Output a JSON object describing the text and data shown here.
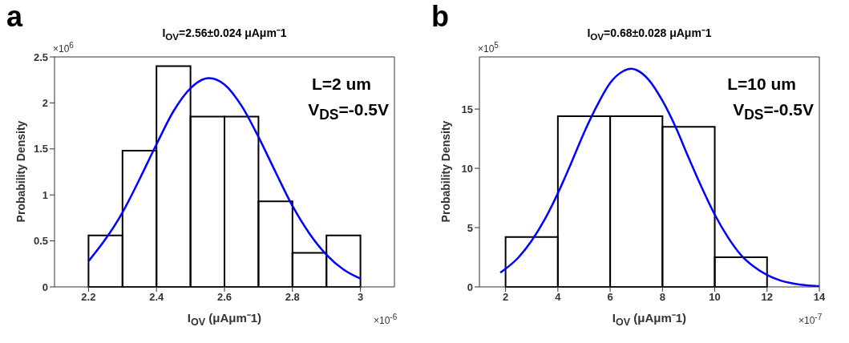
{
  "chart_data": [
    {
      "type": "histogram",
      "title": "I$_{OV}$=2.56±0.024 μAμm⁻1",
      "xlabel": "I$_{OV}$ (μAμm⁻1)",
      "ylabel": "Probability Density",
      "annotations": [
        "a",
        "×10$^{6}$",
        "×10$^{-6}$",
        "L=2 um",
        "V$_{DS}$=-0.5V"
      ],
      "xlim": [
        2.1,
        3.1
      ],
      "xticks": [
        2.2,
        2.4,
        2.6,
        2.8,
        3
      ],
      "ylim": [
        0,
        2.5
      ],
      "yticks": [
        0,
        0.5,
        1,
        1.5,
        2,
        2.5
      ],
      "color": "#000000",
      "bins": [
        2.2,
        2.3,
        2.4,
        2.5,
        2.6,
        2.7,
        2.8,
        2.9,
        3.0
      ],
      "values": [
        0.56,
        1.48,
        2.4,
        1.85,
        1.85,
        0.93,
        0.37,
        0.56
      ],
      "series": [
        {
          "type": "line",
          "color": "#0000ff",
          "x": [
            2.2,
            2.25,
            2.3,
            2.35,
            2.4,
            2.45,
            2.5,
            2.555,
            2.6,
            2.65,
            2.7,
            2.75,
            2.8,
            2.85,
            2.9,
            2.95,
            3.0
          ],
          "values": [
            0.28,
            0.52,
            0.81,
            1.17,
            1.55,
            1.91,
            2.16,
            2.27,
            2.2,
            1.97,
            1.63,
            1.25,
            0.88,
            0.58,
            0.35,
            0.19,
            0.09
          ]
        }
      ]
    },
    {
      "type": "histogram",
      "title": "I$_{OV}$=0.68±0.028 μAμm⁻1",
      "xlabel": "I$_{OV}$ (μAμm⁻1)",
      "ylabel": "Probability Density",
      "annotations": [
        "b",
        "×10$^{5}$",
        "×10$^{-7}$",
        "L=10 um",
        "V$_{DS}$=-0.5V"
      ],
      "xlim": [
        1,
        14
      ],
      "xticks": [
        2,
        4,
        6,
        8,
        10,
        12,
        14
      ],
      "ylim": [
        0,
        19.4
      ],
      "yticks": [
        0,
        5,
        10,
        15
      ],
      "color": "#000000",
      "bins": [
        2,
        4,
        6,
        8,
        10,
        12,
        14
      ],
      "values": [
        4.2,
        14.4,
        14.4,
        13.5,
        2.5,
        0
      ],
      "series": [
        {
          "type": "line",
          "color": "#0000ff",
          "x": [
            1.8,
            2.5,
            3,
            3.5,
            4,
            4.5,
            5,
            5.5,
            6,
            6.5,
            6.8,
            7,
            7.5,
            8,
            8.5,
            9,
            9.5,
            10,
            10.5,
            11,
            11.5,
            12,
            12.5,
            13,
            13.5,
            14
          ],
          "values": [
            1.2,
            2.5,
            3.9,
            5.7,
            7.9,
            10.4,
            13,
            15.3,
            17.2,
            18.2,
            18.4,
            18.3,
            17.4,
            15.7,
            13.5,
            10.9,
            8.4,
            6.1,
            4.2,
            2.7,
            1.7,
            1,
            0.55,
            0.29,
            0.14,
            0.07
          ]
        }
      ]
    }
  ]
}
